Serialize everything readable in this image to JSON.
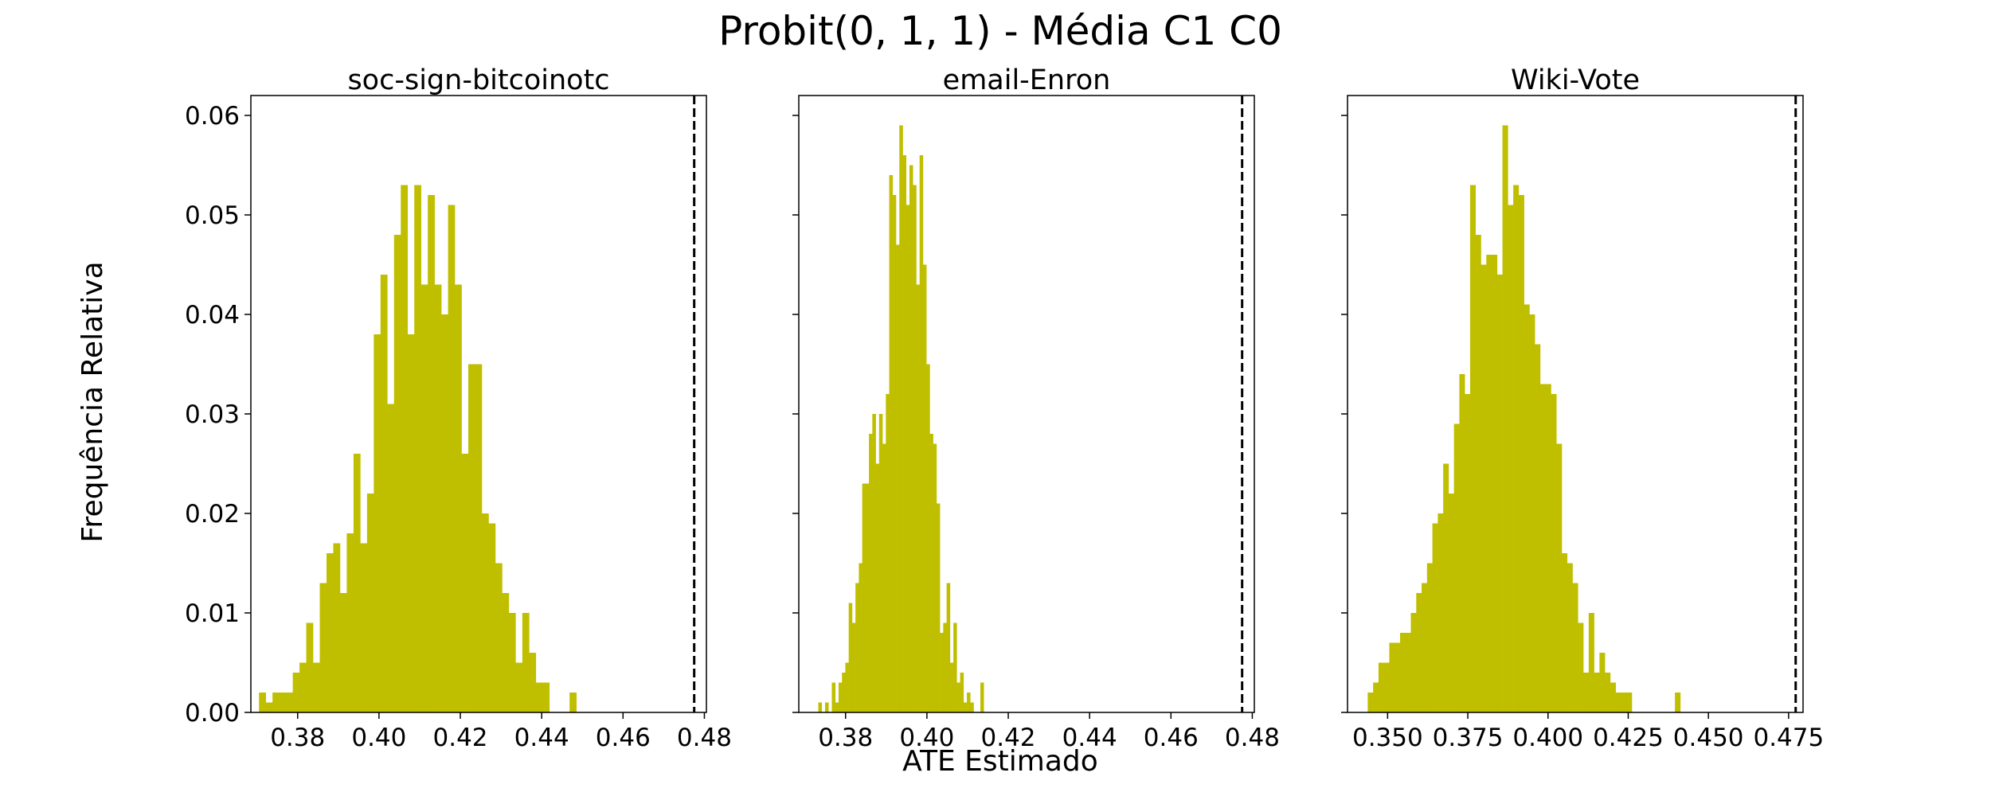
{
  "figure": {
    "suptitle": "Probit(0, 1, 1) - Média C1 C0",
    "ylabel": "Frequência Relativa",
    "xlabel": "ATE Estimado",
    "bar_color": "#bfbf00",
    "reference_line_color": "#000000"
  },
  "chart_data": [
    {
      "type": "bar",
      "title": "soc-sign-bitcoinotc",
      "xlim": [
        0.3685,
        0.4805
      ],
      "ylim": [
        0,
        0.062
      ],
      "xticks": [
        0.38,
        0.4,
        0.42,
        0.44,
        0.46,
        0.48
      ],
      "xtick_labels": [
        "0.38",
        "0.40",
        "0.42",
        "0.44",
        "0.46",
        "0.48"
      ],
      "yticks": [
        0.0,
        0.01,
        0.02,
        0.03,
        0.04,
        0.05,
        0.06
      ],
      "ytick_labels": [
        "0.00",
        "0.01",
        "0.02",
        "0.03",
        "0.04",
        "0.05",
        "0.06"
      ],
      "reference_line": 0.4775,
      "bin_start": 0.3705,
      "bin_width": 0.00166,
      "values": [
        0.002,
        0.001,
        0.002,
        0.002,
        0.002,
        0.004,
        0.005,
        0.009,
        0.005,
        0.013,
        0.016,
        0.017,
        0.012,
        0.018,
        0.026,
        0.017,
        0.022,
        0.038,
        0.044,
        0.031,
        0.048,
        0.053,
        0.038,
        0.053,
        0.043,
        0.052,
        0.043,
        0.04,
        0.051,
        0.043,
        0.026,
        0.035,
        0.035,
        0.02,
        0.019,
        0.015,
        0.012,
        0.01,
        0.005,
        0.01,
        0.006,
        0.003,
        0.003,
        0,
        0,
        0,
        0.002
      ]
    },
    {
      "type": "bar",
      "title": "email-Enron",
      "xlim": [
        0.3685,
        0.4805
      ],
      "ylim": [
        0,
        0.062
      ],
      "xticks": [
        0.38,
        0.4,
        0.42,
        0.44,
        0.46,
        0.48
      ],
      "xtick_labels": [
        "0.38",
        "0.40",
        "0.42",
        "0.44",
        "0.46",
        "0.48"
      ],
      "yticks": [
        0.0,
        0.01,
        0.02,
        0.03,
        0.04,
        0.05,
        0.06
      ],
      "reference_line": 0.4775,
      "bin_start": 0.3733,
      "bin_width": 0.00083,
      "values": [
        0.001,
        0,
        0.001,
        0,
        0.003,
        0.001,
        0.003,
        0.004,
        0.005,
        0.011,
        0.009,
        0.013,
        0.015,
        0.023,
        0.023,
        0.028,
        0.03,
        0.025,
        0.03,
        0.027,
        0.032,
        0.054,
        0.052,
        0.047,
        0.059,
        0.056,
        0.051,
        0.055,
        0.053,
        0.043,
        0.056,
        0.045,
        0.035,
        0.028,
        0.027,
        0.021,
        0.008,
        0.009,
        0.013,
        0.005,
        0.009,
        0.003,
        0.004,
        0.001,
        0.002,
        0.001,
        0,
        0,
        0.003
      ]
    },
    {
      "type": "bar",
      "title": "Wiki-Vote",
      "xlim": [
        0.3375,
        0.4795
      ],
      "ylim": [
        0,
        0.062
      ],
      "xticks": [
        0.35,
        0.375,
        0.4,
        0.425,
        0.45,
        0.475
      ],
      "xtick_labels": [
        "0.350",
        "0.375",
        "0.400",
        "0.425",
        "0.450",
        "0.475"
      ],
      "yticks": [
        0.0,
        0.01,
        0.02,
        0.03,
        0.04,
        0.05,
        0.06
      ],
      "reference_line": 0.4772,
      "bin_start": 0.3438,
      "bin_width": 0.00168,
      "values": [
        0.002,
        0.003,
        0.005,
        0.005,
        0.007,
        0.007,
        0.008,
        0.008,
        0.01,
        0.012,
        0.013,
        0.015,
        0.019,
        0.02,
        0.025,
        0.022,
        0.029,
        0.034,
        0.032,
        0.053,
        0.048,
        0.045,
        0.046,
        0.046,
        0.044,
        0.059,
        0.051,
        0.053,
        0.052,
        0.041,
        0.04,
        0.037,
        0.033,
        0.033,
        0.032,
        0.027,
        0.016,
        0.015,
        0.013,
        0.009,
        0.004,
        0.01,
        0.004,
        0.006,
        0.004,
        0.003,
        0.002,
        0.002,
        0.002,
        0,
        0,
        0,
        0,
        0,
        0,
        0,
        0,
        0.002
      ]
    }
  ]
}
